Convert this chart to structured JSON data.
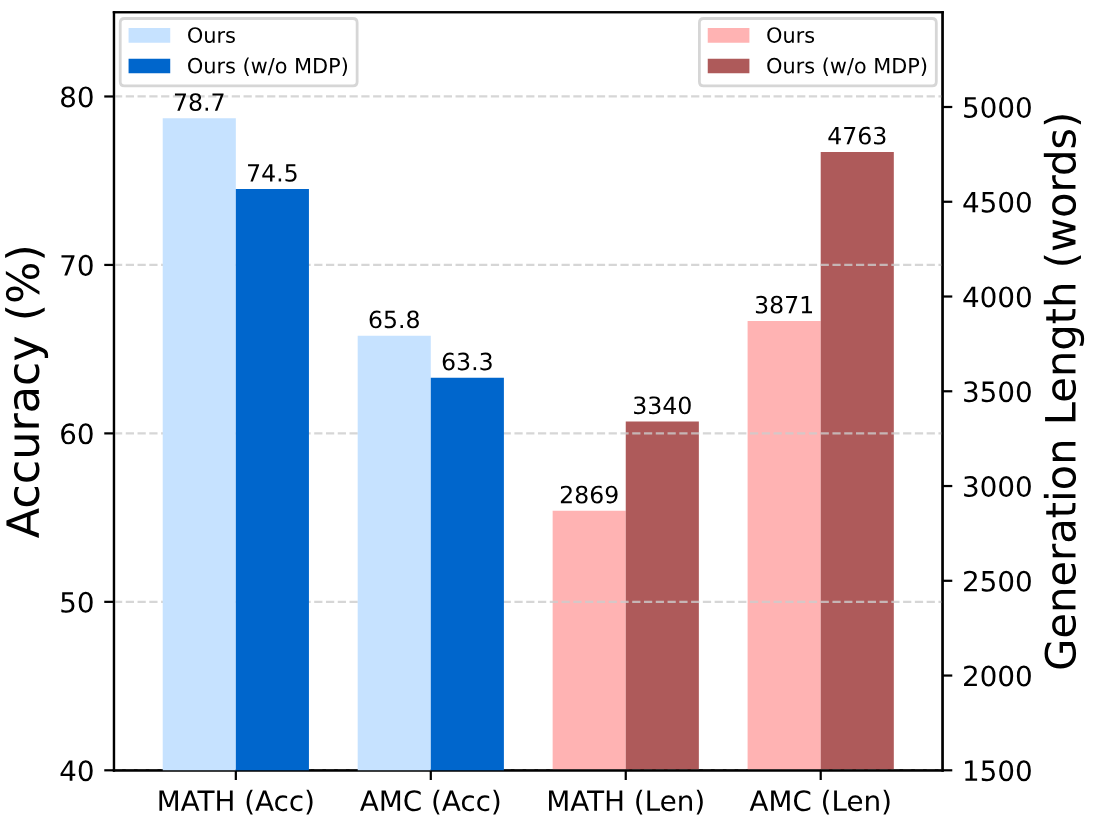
{
  "chart_data": {
    "type": "bar",
    "categories": [
      "MATH (Acc)",
      "AMC (Acc)",
      "MATH (Len)",
      "AMC (Len)"
    ],
    "ylabel": "Accuracy (%)",
    "y2label": "Generation Length (words)",
    "series": [
      {
        "name": "Ours",
        "color": "#c6e2ff",
        "values": [
          78.7,
          65.8,
          null,
          null
        ]
      },
      {
        "name": "Ours (w/o MDP)",
        "color": "#0066cc",
        "values": [
          74.5,
          63.3,
          null,
          null
        ]
      },
      {
        "name": "Ours",
        "color": "#ffb3b3",
        "values": [
          null,
          null,
          2869,
          3871
        ],
        "axis": "y2"
      },
      {
        "name": "Ours (w/o MDP)",
        "color": "#ae5a5a",
        "values": [
          null,
          null,
          3340,
          4763
        ],
        "axis": "y2"
      }
    ],
    "ylim": [
      40,
      85
    ],
    "yticks": [
      40,
      50,
      60,
      70,
      80
    ],
    "y2lim": [
      1500,
      5500
    ],
    "y2ticks": [
      1500,
      2000,
      2500,
      3000,
      3500,
      4000,
      4500,
      5000
    ],
    "data_labels": true,
    "grid": "y",
    "legend": "top left"
  }
}
